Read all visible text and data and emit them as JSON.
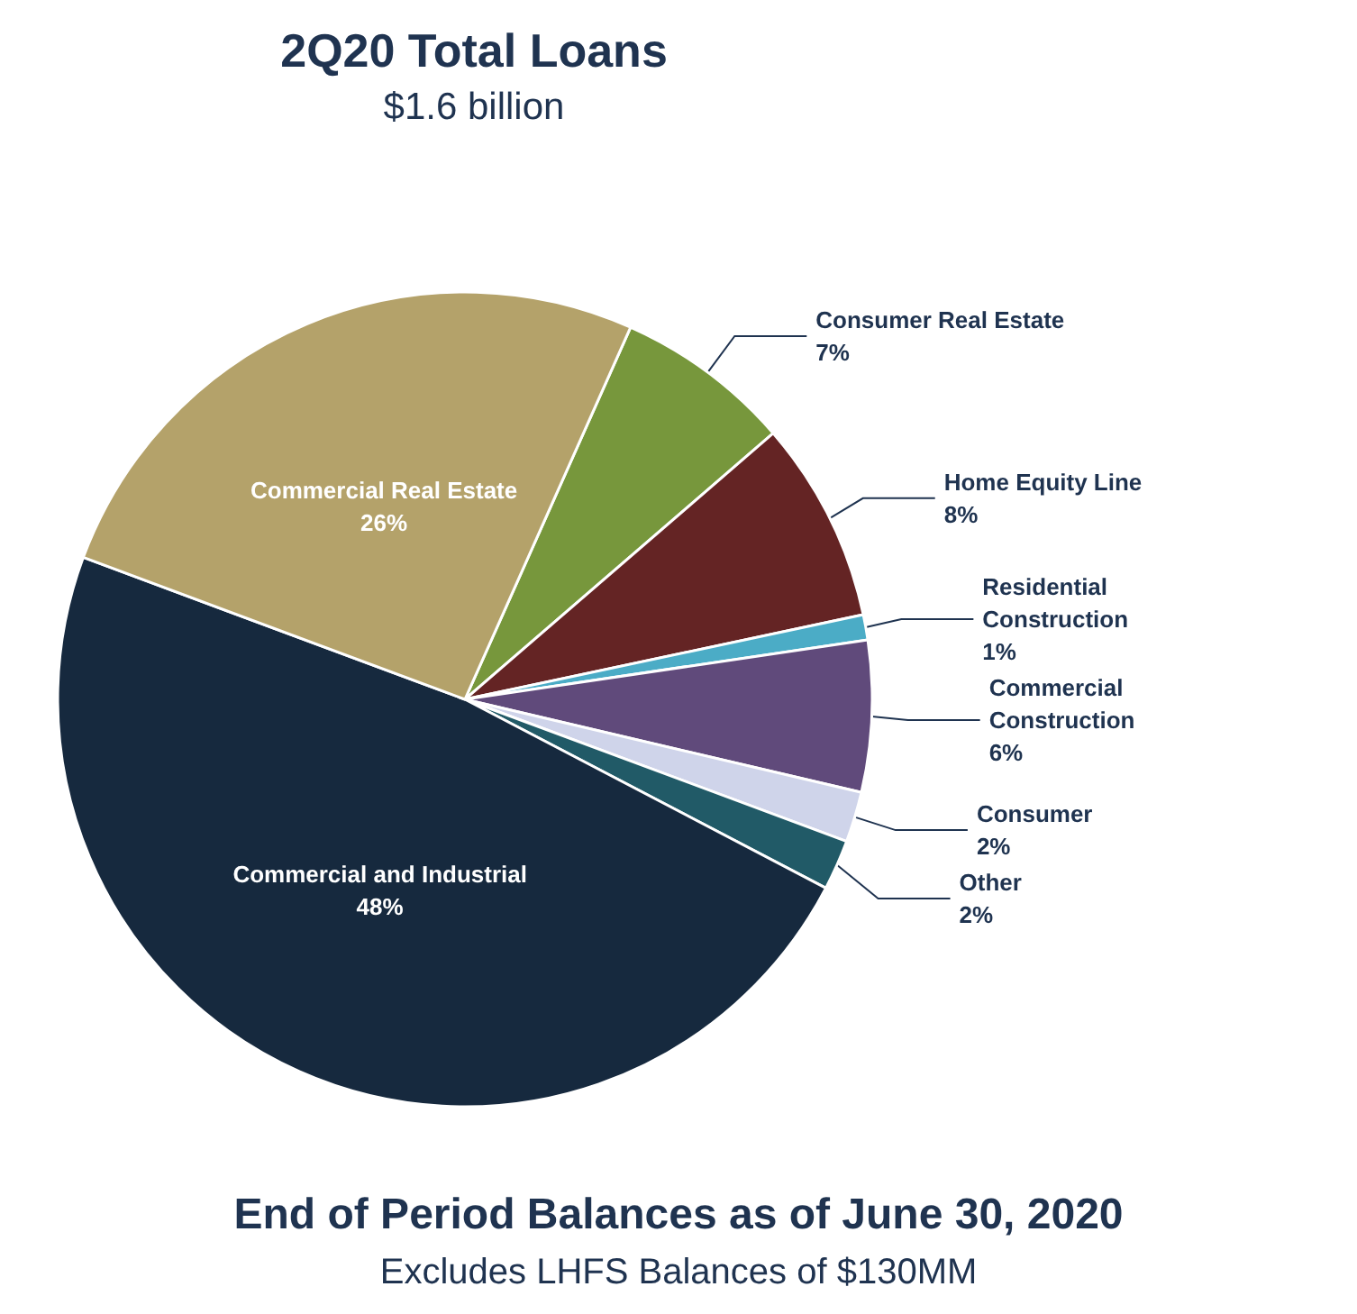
{
  "chart_data": {
    "type": "pie",
    "title": "2Q20 Total Loans",
    "subtitle": "$1.6 billion",
    "categories": [
      "Consumer Real Estate",
      "Home Equity Line",
      "Residential Construction",
      "Commercial Construction",
      "Consumer",
      "Other",
      "Commercial and Industrial",
      "Commercial Real Estate"
    ],
    "values": [
      7,
      8,
      1,
      6,
      2,
      2,
      48,
      26
    ],
    "colors": [
      "#77973c",
      "#642424",
      "#4bacc6",
      "#604a7b",
      "#cfd4ea",
      "#215a67",
      "#16293e",
      "#b4a26a"
    ],
    "value_labels": [
      "7%",
      "8%",
      "1%",
      "6%",
      "2%",
      "2%",
      "48%",
      "26%"
    ],
    "legend": false,
    "annotations": [
      "End of Period Balances as of June 30, 2020",
      "Excludes LHFS Balances of $130MM"
    ]
  }
}
